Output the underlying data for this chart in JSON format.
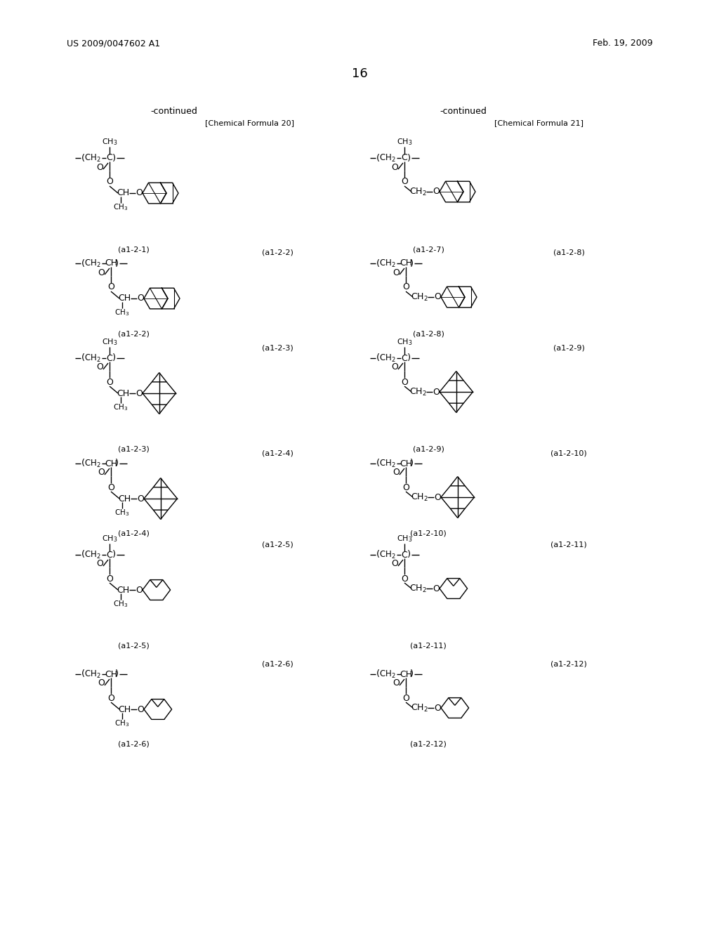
{
  "page_header_left": "US 2009/0047602 A1",
  "page_header_right": "Feb. 19, 2009",
  "page_number": "16",
  "left_title": "-continued",
  "left_formula_label": "[Chemical Formula 20]",
  "right_title": "-continued",
  "right_formula_label": "[Chemical Formula 21]",
  "background_color": "#ffffff",
  "text_color": "#000000",
  "label_rows_left": [
    "(a1-2-1)",
    "(a1-2-2)",
    "(a1-2-3)",
    "(a1-2-4)",
    "(a1-2-5)",
    "(a1-2-6)"
  ],
  "label_rows_right": [
    "(a1-2-7)",
    "(a1-2-8)",
    "(a1-2-9)",
    "(a1-2-10)",
    "(a1-2-11)",
    "(a1-2-12)"
  ],
  "between_labels_left": [
    "(a1-2-2)",
    "(a1-2-3)",
    "(a1-2-4)",
    "(a1-2-5)",
    "(a1-2-6)"
  ],
  "between_labels_right": [
    "(a1-2-8)",
    "(a1-2-9)",
    "(a1-2-10)",
    "(a1-2-11)",
    "(a1-2-12)"
  ]
}
